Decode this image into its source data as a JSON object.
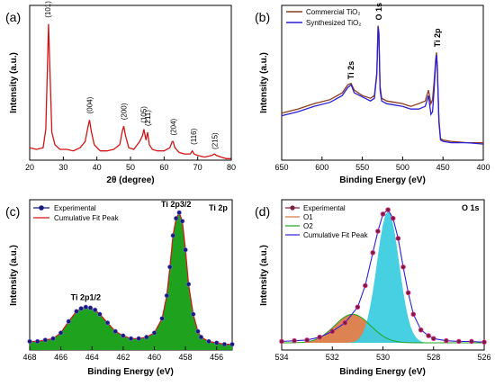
{
  "colors": {
    "red": "#d21414",
    "brown": "#8b3a1e",
    "blue": "#2b1fd6",
    "navy": "#1a1a7a",
    "green_fill": "#1fa31f",
    "cyan_fill": "#3ccde0",
    "orange_fill": "#d9763e",
    "pink_fit": "#e7309a"
  },
  "chart_data": [
    {
      "panel": "(a)",
      "type": "line",
      "xlabel": "2θ (degree)",
      "ylabel": "Intensity (a.u.)",
      "xlim": [
        20,
        80
      ],
      "xticks": [
        "20",
        "30",
        "40",
        "50",
        "60",
        "70",
        "80"
      ],
      "series": [
        {
          "x": [
            20,
            22,
            24,
            24.8,
            25.3,
            25.6,
            26.0,
            26.6,
            27.5,
            29,
            31,
            33,
            35,
            36.5,
            37.3,
            37.8,
            38.3,
            39.2,
            41,
            43,
            45,
            46.8,
            47.6,
            48.0,
            48.5,
            49.5,
            51,
            52.7,
            53.6,
            54.0,
            54.6,
            55.1,
            55.6,
            56.5,
            58,
            60,
            61.7,
            62.4,
            62.7,
            63.2,
            64.5,
            66,
            67.8,
            68.4,
            68.9,
            70,
            72,
            74.2,
            75.0,
            75.6,
            77,
            78.5,
            80
          ],
          "y": [
            8,
            7,
            8,
            20,
            62,
            88,
            60,
            18,
            10,
            7,
            7,
            6,
            8,
            12,
            21,
            26,
            19,
            10,
            6,
            6,
            7,
            10,
            19,
            22,
            16,
            8,
            7,
            12,
            16,
            20,
            13,
            18,
            10,
            7,
            6,
            6,
            8,
            12,
            12,
            8,
            5,
            4,
            4,
            6,
            4,
            3,
            2,
            3,
            4,
            3,
            2,
            1,
            1
          ]
        }
      ],
      "annotations": [
        "(101)",
        "(004)",
        "(200)",
        "(105)",
        "(211)",
        "(204)",
        "(116)",
        "(215)"
      ]
    },
    {
      "panel": "(b)",
      "type": "line",
      "xlabel": "Binding Energy (eV)",
      "ylabel": "Intensity (a.u.)",
      "xlim": [
        650,
        400
      ],
      "xticks": [
        "650",
        "600",
        "550",
        "500",
        "450",
        "400"
      ],
      "legend": [
        "Commercial TiO₂",
        "Synthesized TiO₂"
      ],
      "series": [
        {
          "name": "Commercial TiO₂",
          "x": [
            650,
            630,
            610,
            590,
            575,
            568,
            564,
            560,
            550,
            540,
            535,
            532,
            530.5,
            529.5,
            528,
            526,
            520,
            510,
            500,
            490,
            480,
            472,
            468,
            465,
            463,
            461,
            459,
            458,
            457,
            455,
            453,
            450,
            440,
            420,
            400
          ],
          "y": [
            35,
            38,
            42,
            45,
            50,
            56,
            57,
            52,
            48,
            46,
            48,
            65,
            100,
            95,
            55,
            46,
            44,
            43,
            42,
            40,
            42,
            44,
            52,
            42,
            45,
            58,
            75,
            80,
            70,
            30,
            16,
            15,
            14,
            13,
            13
          ]
        },
        {
          "name": "Synthesized TiO₂",
          "x": [
            650,
            630,
            610,
            590,
            575,
            568,
            564,
            560,
            550,
            540,
            535,
            532,
            530.5,
            529.5,
            528,
            526,
            520,
            510,
            500,
            490,
            480,
            472,
            468,
            465,
            463,
            461,
            459,
            458,
            457,
            455,
            453,
            450,
            440,
            420,
            400
          ],
          "y": [
            33,
            36,
            40,
            43,
            48,
            54,
            56,
            50,
            47,
            44,
            46,
            64,
            99,
            94,
            52,
            44,
            42,
            41,
            40,
            38,
            38,
            40,
            48,
            34,
            36,
            52,
            72,
            78,
            68,
            28,
            15,
            14,
            13,
            13,
            12
          ]
        }
      ],
      "annotations": [
        "Ti 2s",
        "O 1s",
        "Ti 2p"
      ]
    },
    {
      "panel": "(c)",
      "type": "area",
      "xlabel": "Binding Energy (eV)",
      "ylabel": "Intensity (a.u.)",
      "xlim": [
        468,
        455
      ],
      "xticks": [
        "468",
        "466",
        "464",
        "462",
        "460",
        "458",
        "456"
      ],
      "legend": [
        "Experimental",
        "Cumulative Fit Peak"
      ],
      "corner_label": "Ti 2p",
      "series": [
        {
          "name": "Experimental",
          "x": [
            468,
            467.5,
            467,
            466.5,
            466,
            465.5,
            465,
            464.7,
            464.4,
            464.1,
            463.8,
            463.5,
            463,
            462.5,
            462,
            461.5,
            461,
            460.5,
            460,
            459.5,
            459.2,
            459,
            458.8,
            458.6,
            458.4,
            458.2,
            458,
            457.8,
            457.5,
            457.2,
            457,
            456.5,
            456,
            455.5,
            455
          ],
          "y": [
            6,
            6,
            7,
            8,
            12,
            20,
            27,
            29,
            30,
            29.5,
            28,
            25,
            19,
            13,
            10,
            8,
            8,
            9,
            12,
            22,
            38,
            58,
            80,
            92,
            96,
            90,
            70,
            46,
            25,
            13,
            9,
            6,
            5,
            4,
            4
          ]
        }
      ],
      "annotations": [
        "Ti 2p3/2",
        "Ti 2p1/2"
      ]
    },
    {
      "panel": "(d)",
      "type": "area",
      "xlabel": "Binding Energy (eV)",
      "ylabel": "Intensity (a.u.)",
      "xlim": [
        534,
        526
      ],
      "xticks": [
        "534",
        "532",
        "530",
        "528",
        "526"
      ],
      "legend": [
        "Experimental",
        "O1",
        "O2",
        "Cumulative Fit Peak"
      ],
      "corner_label": "O 1s",
      "series": [
        {
          "name": "Experimental",
          "x": [
            534,
            533.5,
            533,
            532.5,
            532,
            531.5,
            531,
            530.7,
            530.4,
            530.2,
            530.0,
            529.8,
            529.6,
            529.4,
            529.2,
            529.0,
            528.8,
            528.5,
            528.2,
            528,
            527.5,
            527,
            526.5,
            526
          ],
          "y": [
            6,
            6.5,
            7,
            9,
            13,
            19,
            30,
            45,
            68,
            83,
            95,
            98,
            92,
            78,
            58,
            40,
            25,
            14,
            10,
            8,
            6.5,
            6,
            6,
            5.5
          ]
        }
      ]
    }
  ]
}
